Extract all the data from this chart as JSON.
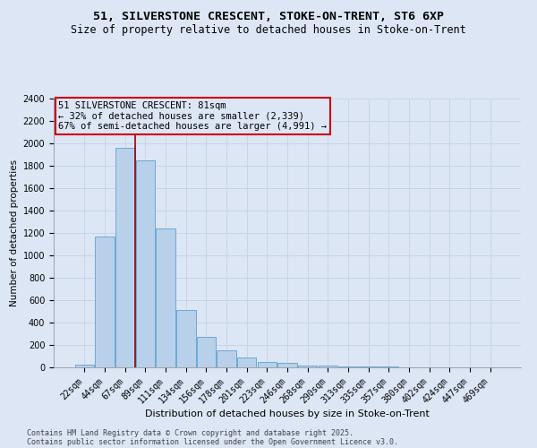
{
  "title1": "51, SILVERSTONE CRESCENT, STOKE-ON-TRENT, ST6 6XP",
  "title2": "Size of property relative to detached houses in Stoke-on-Trent",
  "xlabel": "Distribution of detached houses by size in Stoke-on-Trent",
  "ylabel": "Number of detached properties",
  "bar_labels": [
    "22sqm",
    "44sqm",
    "67sqm",
    "89sqm",
    "111sqm",
    "134sqm",
    "156sqm",
    "178sqm",
    "201sqm",
    "223sqm",
    "246sqm",
    "268sqm",
    "290sqm",
    "313sqm",
    "335sqm",
    "357sqm",
    "380sqm",
    "402sqm",
    "424sqm",
    "447sqm",
    "469sqm"
  ],
  "bar_heights": [
    25,
    1170,
    1960,
    1850,
    1240,
    510,
    270,
    155,
    90,
    50,
    40,
    20,
    15,
    10,
    5,
    5,
    3,
    3,
    2,
    1,
    1
  ],
  "bar_color": "#b8d0ea",
  "bar_edge_color": "#6aaad4",
  "grid_color": "#c8d4e8",
  "bg_color": "#dce6f5",
  "vline_color": "#990000",
  "vline_x": 2.5,
  "annotation_text": "51 SILVERSTONE CRESCENT: 81sqm\n← 32% of detached houses are smaller (2,339)\n67% of semi-detached houses are larger (4,991) →",
  "annotation_box_edge_color": "#cc0000",
  "annotation_box_face_color": "#dce6f5",
  "ylim": [
    0,
    2400
  ],
  "yticks": [
    0,
    200,
    400,
    600,
    800,
    1000,
    1200,
    1400,
    1600,
    1800,
    2000,
    2200,
    2400
  ],
  "footnote1": "Contains HM Land Registry data © Crown copyright and database right 2025.",
  "footnote2": "Contains public sector information licensed under the Open Government Licence v3.0.",
  "title1_fontsize": 9.5,
  "title2_fontsize": 8.5,
  "xlabel_fontsize": 8,
  "ylabel_fontsize": 7.5,
  "tick_fontsize": 7,
  "annotation_fontsize": 7.5,
  "footnote_fontsize": 6
}
